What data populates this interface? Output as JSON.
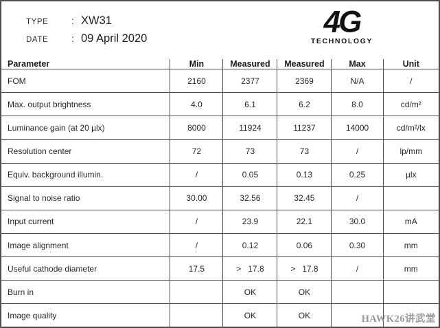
{
  "header": {
    "type_label": "TYPE",
    "type_colon": ":",
    "type_value": "XW31",
    "date_label": "DATE",
    "date_colon": ":",
    "date_value": "09 April 2020",
    "logo_text": "4G",
    "logo_subtext": "TECHNOLOGY"
  },
  "table": {
    "columns": [
      "Parameter",
      "Min",
      "Measured",
      "Measured",
      "Max",
      "Unit"
    ],
    "column_widths_percent": [
      38.6,
      12.1,
      12.4,
      12.4,
      11.8,
      12.7
    ],
    "rows": [
      [
        "FOM",
        "2160",
        "2377",
        "2369",
        "N/A",
        "/"
      ],
      [
        "Max. output brightness",
        "4.0",
        "6.1",
        "6.2",
        "8.0",
        "cd/m²"
      ],
      [
        "Luminance gain (at 20 µlx)",
        "8000",
        "11924",
        "11237",
        "14000",
        "cd/m²/lx"
      ],
      [
        "Resolution center",
        "72",
        "73",
        "73",
        "/",
        "lp/mm"
      ],
      [
        "Equiv. background illumin.",
        "/",
        "0.05",
        "0.13",
        "0.25",
        "µlx"
      ],
      [
        "Signal to noise ratio",
        "30.00",
        "32.56",
        "32.45",
        "/",
        ""
      ],
      [
        "Input current",
        "/",
        "23.9",
        "22.1",
        "30.0",
        "mA"
      ],
      [
        "Image alignment",
        "/",
        "0.12",
        "0.06",
        "0.30",
        "mm"
      ],
      [
        "Useful cathode diameter",
        "17.5",
        ">   17.8",
        ">   17.8",
        "/",
        "mm"
      ],
      [
        "Burn in",
        "",
        "OK",
        "OK",
        "",
        ""
      ],
      [
        "Image quality",
        "",
        "OK",
        "OK",
        "",
        ""
      ]
    ]
  },
  "watermark": "HAWK26讲武堂",
  "colors": {
    "border": "#4d4d4d",
    "text": "#262626",
    "logo": "#111111",
    "watermark": "#8f8f8f",
    "background": "#ffffff"
  }
}
